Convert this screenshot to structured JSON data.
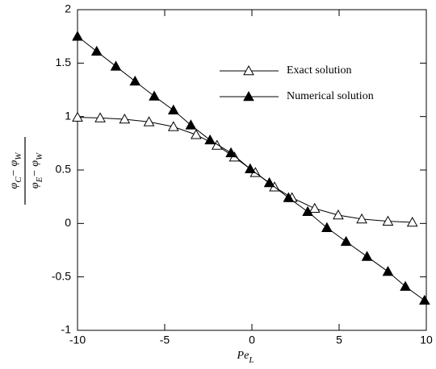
{
  "chart_data": {
    "type": "line",
    "x_label": [
      "Pe",
      "L"
    ],
    "y_label_numerator": [
      "φ",
      "C",
      "− φ",
      "W"
    ],
    "y_label_denominator": [
      "φ",
      "E",
      "− φ",
      "W"
    ],
    "xlim": [
      -10,
      10
    ],
    "xticks": [
      -10,
      -5,
      0,
      5,
      10
    ],
    "ylim": [
      -1,
      2
    ],
    "yticks": [
      -1,
      -0.5,
      0,
      0.5,
      1,
      1.5,
      2
    ],
    "legend": "upper right",
    "series": [
      {
        "name": "Exact solution",
        "color": "#000000",
        "filled": false,
        "x": [
          -10,
          -8.7,
          -7.3,
          -5.9,
          -4.5,
          -3.2,
          -2.0,
          -1.0,
          0.2,
          1.3,
          2.3,
          3.6,
          4.95,
          6.3,
          7.8,
          9.2
        ],
        "values": [
          0.993,
          0.987,
          0.975,
          0.95,
          0.905,
          0.83,
          0.73,
          0.62,
          0.475,
          0.34,
          0.24,
          0.14,
          0.078,
          0.041,
          0.02,
          0.01
        ]
      },
      {
        "name": "Numerical solution",
        "color": "#000000",
        "filled": true,
        "x": [
          -10,
          -8.9,
          -7.8,
          -6.7,
          -5.6,
          -4.5,
          -3.5,
          -2.4,
          -1.2,
          -0.1,
          1.0,
          2.1,
          3.2,
          4.3,
          5.4,
          6.6,
          7.8,
          8.8,
          9.9
        ],
        "values": [
          1.75,
          1.61,
          1.47,
          1.33,
          1.19,
          1.06,
          0.92,
          0.78,
          0.66,
          0.51,
          0.38,
          0.24,
          0.11,
          -0.04,
          -0.17,
          -0.31,
          -0.45,
          -0.59,
          -0.72
        ]
      }
    ]
  }
}
